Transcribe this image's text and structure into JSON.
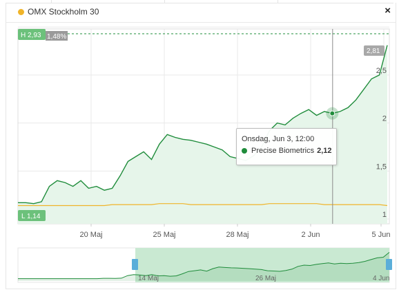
{
  "colors": {
    "precise_line": "#1f8c3b",
    "precise_fill": "#e6f5ea",
    "omx_line": "#f0b429",
    "high_badge": "#6cc17b",
    "low_badge": "#6cc17b",
    "last_badge": "#a8a8a8",
    "navigator_mask": "#c9e9d2",
    "navigator_handle": "#5aaed9"
  },
  "legend": {
    "label": "OMX Stockholm 30",
    "icon": "circle-icon"
  },
  "close_label": "×",
  "badges": {
    "high": "H 2,93",
    "high_pct": "1,48%",
    "low": "L 1,14",
    "last": "2,81"
  },
  "tooltip": {
    "date": "Onsdag, Jun 3, 12:00",
    "series": "Precise Biometrics",
    "value": "2,12"
  },
  "axis": {
    "y_ticks": [
      "2,5",
      "2",
      "1,5",
      "1"
    ],
    "x_ticks": [
      "20 Maj",
      "25 Maj",
      "28 Maj",
      "2 Jun",
      "5 Jun"
    ]
  },
  "navigator": {
    "x_ticks": [
      "14 Maj",
      "26 Maj",
      "4 Jun"
    ]
  },
  "chart_data": {
    "type": "line",
    "x_labels_shown": [
      "20 Maj",
      "25 Maj",
      "28 Maj",
      "2 Jun",
      "5 Jun"
    ],
    "ylim": [
      1,
      3
    ],
    "y_ticks": [
      1,
      1.5,
      2,
      2.5
    ],
    "series": [
      {
        "name": "Precise Biometrics",
        "color": "#1f8c3b",
        "values": [
          1.17,
          1.17,
          1.16,
          1.18,
          1.34,
          1.4,
          1.38,
          1.34,
          1.4,
          1.32,
          1.34,
          1.3,
          1.32,
          1.45,
          1.6,
          1.65,
          1.7,
          1.62,
          1.78,
          1.88,
          1.85,
          1.83,
          1.82,
          1.8,
          1.78,
          1.75,
          1.72,
          1.65,
          1.63,
          1.61,
          1.66,
          1.75,
          1.92,
          2.0,
          1.98,
          2.05,
          2.1,
          2.14,
          2.08,
          2.12,
          2.1,
          2.12,
          2.16,
          2.24,
          2.35,
          2.46,
          2.5,
          2.81
        ]
      },
      {
        "name": "OMX Stockholm 30",
        "color": "#f0b429",
        "values": [
          1.14,
          1.14,
          1.14,
          1.14,
          1.14,
          1.14,
          1.14,
          1.14,
          1.14,
          1.14,
          1.14,
          1.14,
          1.15,
          1.15,
          1.15,
          1.15,
          1.15,
          1.15,
          1.16,
          1.16,
          1.16,
          1.16,
          1.15,
          1.15,
          1.15,
          1.15,
          1.15,
          1.15,
          1.15,
          1.15,
          1.15,
          1.15,
          1.16,
          1.16,
          1.16,
          1.16,
          1.16,
          1.16,
          1.16,
          1.15,
          1.15,
          1.15,
          1.15,
          1.15,
          1.15,
          1.15,
          1.15,
          1.14
        ]
      }
    ],
    "high": 2.93,
    "low": 1.14,
    "last": 2.81,
    "grid": true
  }
}
